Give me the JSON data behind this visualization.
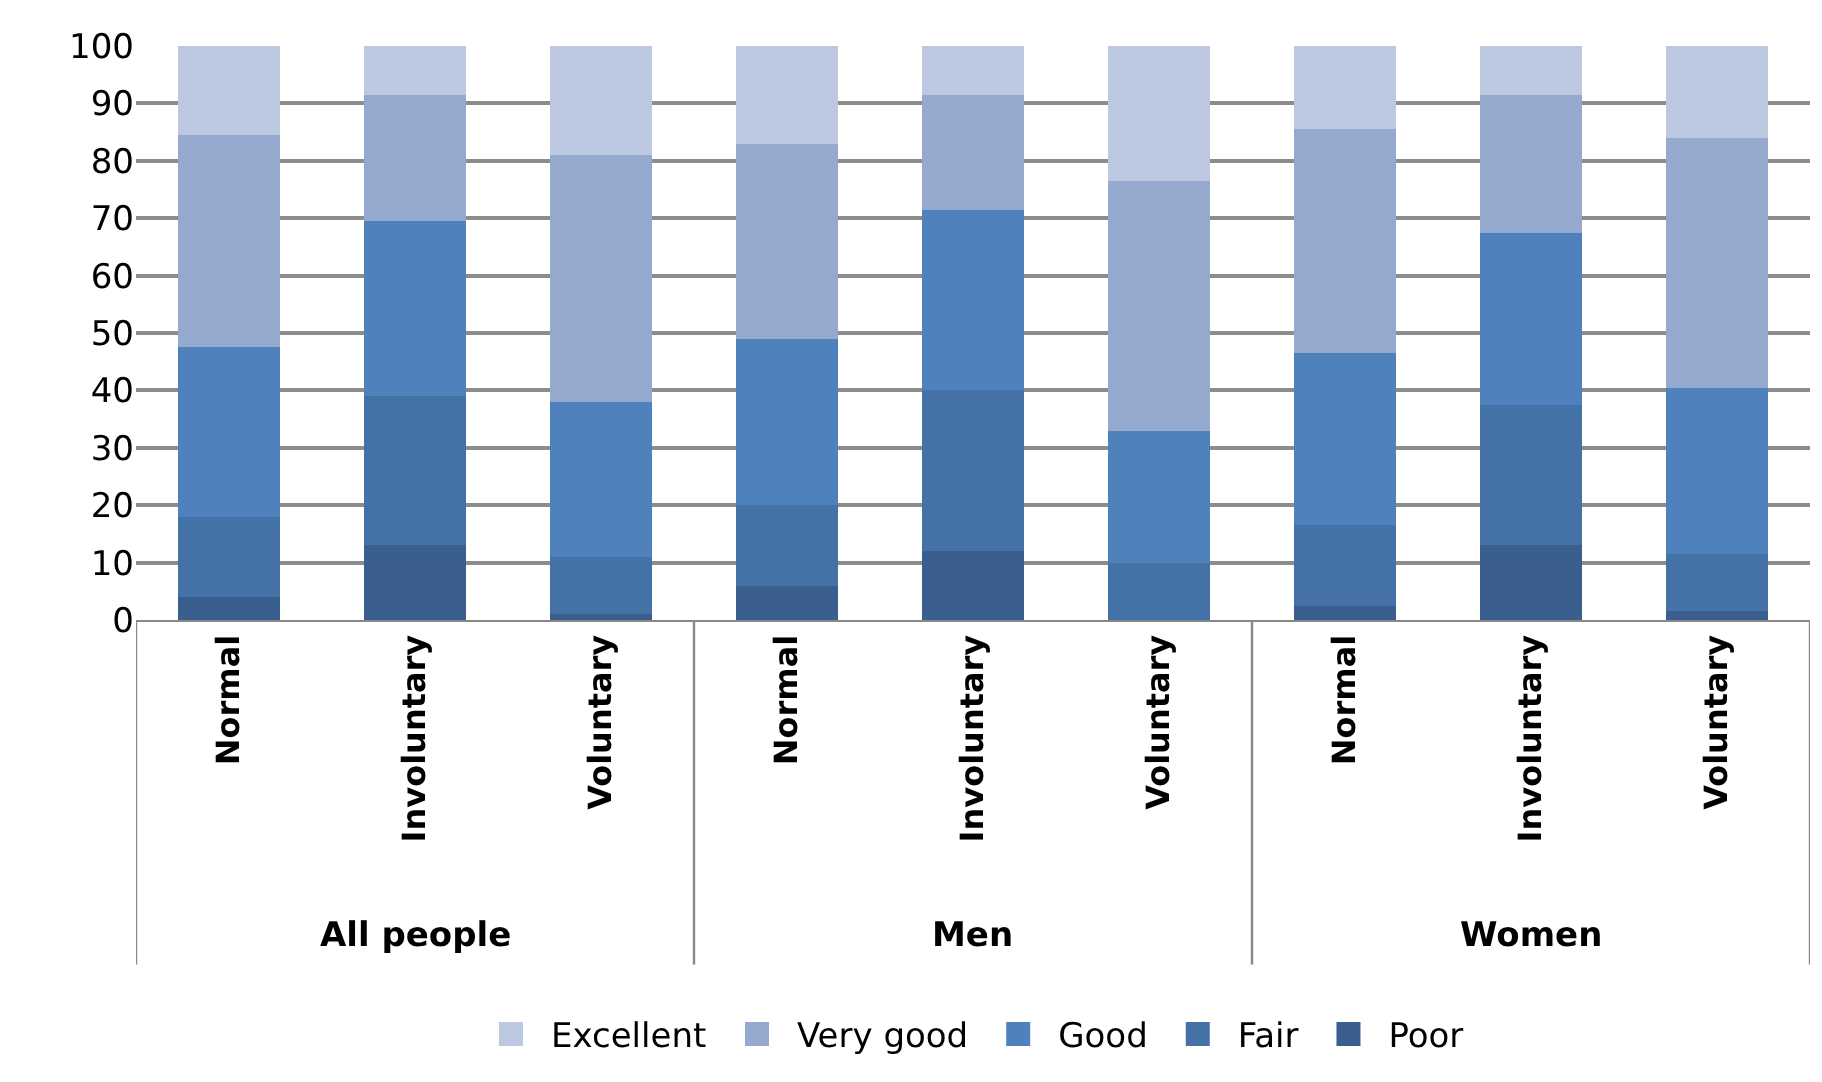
{
  "chart_data": {
    "type": "bar",
    "stacked": true,
    "categories": [
      "Normal",
      "Involuntary",
      "Voluntary",
      "Normal",
      "Involuntary",
      "Voluntary",
      "Normal",
      "Involuntary",
      "Voluntary"
    ],
    "series": [
      {
        "name": "Poor",
        "color": "#3a5f8f",
        "values": [
          4,
          13,
          1,
          6,
          12,
          0,
          2.5,
          13,
          1.5
        ]
      },
      {
        "name": "Fair",
        "color": "#4472a6",
        "values": [
          14,
          26,
          10,
          14,
          28,
          10,
          14,
          24.5,
          10
        ]
      },
      {
        "name": "Good",
        "color": "#4f81bd",
        "values": [
          29.5,
          30.5,
          27,
          29,
          31.5,
          23,
          30,
          30,
          29
        ]
      },
      {
        "name": "Very good",
        "color": "#95a9cf",
        "values": [
          37,
          22,
          43,
          34,
          20,
          43.5,
          39,
          24,
          43.5
        ]
      },
      {
        "name": "Excellent",
        "color": "#bcc8e0",
        "values": [
          15.5,
          8.5,
          19,
          17,
          8.5,
          23.5,
          14.5,
          8.5,
          16
        ]
      }
    ],
    "annotations": [
      "All people",
      "Men",
      "Women"
    ],
    "ylim": [
      0,
      100
    ],
    "yticks": [
      0,
      10,
      20,
      30,
      40,
      50,
      60,
      70,
      80,
      90,
      100
    ],
    "grid": "y",
    "legend": "bottom"
  }
}
